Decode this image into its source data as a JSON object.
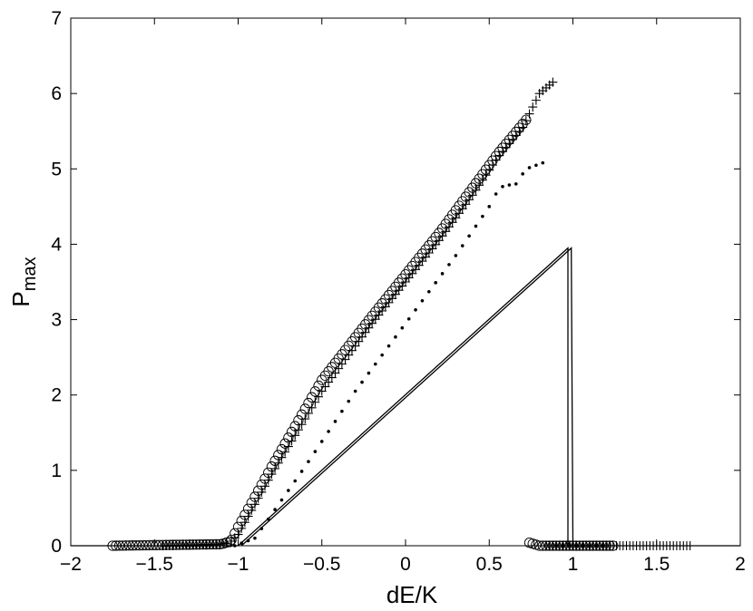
{
  "chart_data": {
    "type": "line",
    "title": "",
    "xlabel": "dE/K",
    "ylabel_main": "P",
    "ylabel_sub": "max",
    "xlim": [
      -2,
      2
    ],
    "ylim": [
      0,
      7
    ],
    "xticks": [
      -2,
      -1.5,
      -1,
      -0.5,
      0,
      0.5,
      1,
      1.5,
      2
    ],
    "xtick_labels": [
      "−2",
      "−1.5",
      "−1",
      "−0.5",
      "0",
      "0.5",
      "1",
      "1.5",
      "2"
    ],
    "yticks": [
      0,
      1,
      2,
      3,
      4,
      5,
      6,
      7
    ],
    "ytick_labels": [
      "0",
      "1",
      "2",
      "3",
      "4",
      "5",
      "6",
      "7"
    ],
    "grid": false,
    "legend": "none",
    "series": [
      {
        "marker": "circle",
        "segments": [
          {
            "x_from": -1.75,
            "x_to": -1.06,
            "step": 0.02,
            "shape": [
              [
                -1.75,
                0.0
              ],
              [
                -1.1,
                0.02
              ],
              [
                -1.06,
                0.05
              ]
            ]
          },
          {
            "x_from": -1.04,
            "x_to": 0.72,
            "step": 0.02,
            "shape": [
              [
                -1.04,
                0.08
              ],
              [
                -1.0,
                0.25
              ],
              [
                -0.8,
                1.05
              ],
              [
                -0.5,
                2.2
              ],
              [
                -0.2,
                3.05
              ],
              [
                0.0,
                3.6
              ],
              [
                0.2,
                4.15
              ],
              [
                0.4,
                4.75
              ],
              [
                0.55,
                5.2
              ],
              [
                0.72,
                5.65
              ]
            ]
          },
          {
            "x_from": 0.74,
            "x_to": 1.24,
            "step": 0.02,
            "shape": [
              [
                0.74,
                0.04
              ],
              [
                0.8,
                0.0
              ],
              [
                1.24,
                0.0
              ]
            ]
          }
        ]
      },
      {
        "marker": "plus",
        "segments": [
          {
            "x_from": -1.45,
            "x_to": -1.06,
            "step": 0.02,
            "shape": [
              [
                -1.45,
                0.0
              ],
              [
                -1.1,
                0.02
              ],
              [
                -1.06,
                0.04
              ]
            ]
          },
          {
            "x_from": -1.04,
            "x_to": 0.88,
            "step": 0.02,
            "shape": [
              [
                -1.04,
                0.06
              ],
              [
                -1.0,
                0.15
              ],
              [
                -0.8,
                0.95
              ],
              [
                -0.5,
                2.05
              ],
              [
                -0.2,
                2.95
              ],
              [
                0.0,
                3.5
              ],
              [
                0.2,
                4.05
              ],
              [
                0.4,
                4.65
              ],
              [
                0.55,
                5.15
              ],
              [
                0.7,
                5.55
              ],
              [
                0.8,
                6.0
              ],
              [
                0.88,
                6.15
              ]
            ]
          },
          {
            "x_from": 0.84,
            "x_to": 1.7,
            "step": 0.02,
            "shape": [
              [
                0.84,
                0.0
              ],
              [
                1.7,
                0.0
              ]
            ]
          }
        ]
      },
      {
        "marker": "dot",
        "segments": [
          {
            "x_from": -1.02,
            "x_to": 0.82,
            "step": 0.04,
            "shape": [
              [
                -1.02,
                0.0
              ],
              [
                -0.9,
                0.1
              ],
              [
                -0.6,
                1.05
              ],
              [
                -0.3,
                2.05
              ],
              [
                0.0,
                2.95
              ],
              [
                0.3,
                3.85
              ],
              [
                0.5,
                4.5
              ],
              [
                0.56,
                4.75
              ],
              [
                0.6,
                4.78
              ],
              [
                0.66,
                4.8
              ],
              [
                0.72,
                5.0
              ],
              [
                0.82,
                5.08
              ]
            ]
          },
          {
            "x_from": 0.9,
            "x_to": 1.2,
            "step": 0.04,
            "shape": [
              [
                0.9,
                0.0
              ],
              [
                1.2,
                0.0
              ]
            ]
          }
        ]
      },
      {
        "marker": "line",
        "points": [
          [
            -2,
            0
          ],
          [
            -1.0,
            0
          ],
          [
            0.97,
            3.95
          ],
          [
            0.97,
            0.0
          ],
          [
            2,
            0
          ]
        ]
      },
      {
        "marker": "line",
        "points": [
          [
            -0.98,
            0
          ],
          [
            0.99,
            3.95
          ],
          [
            1.0,
            0.0
          ]
        ]
      }
    ]
  }
}
